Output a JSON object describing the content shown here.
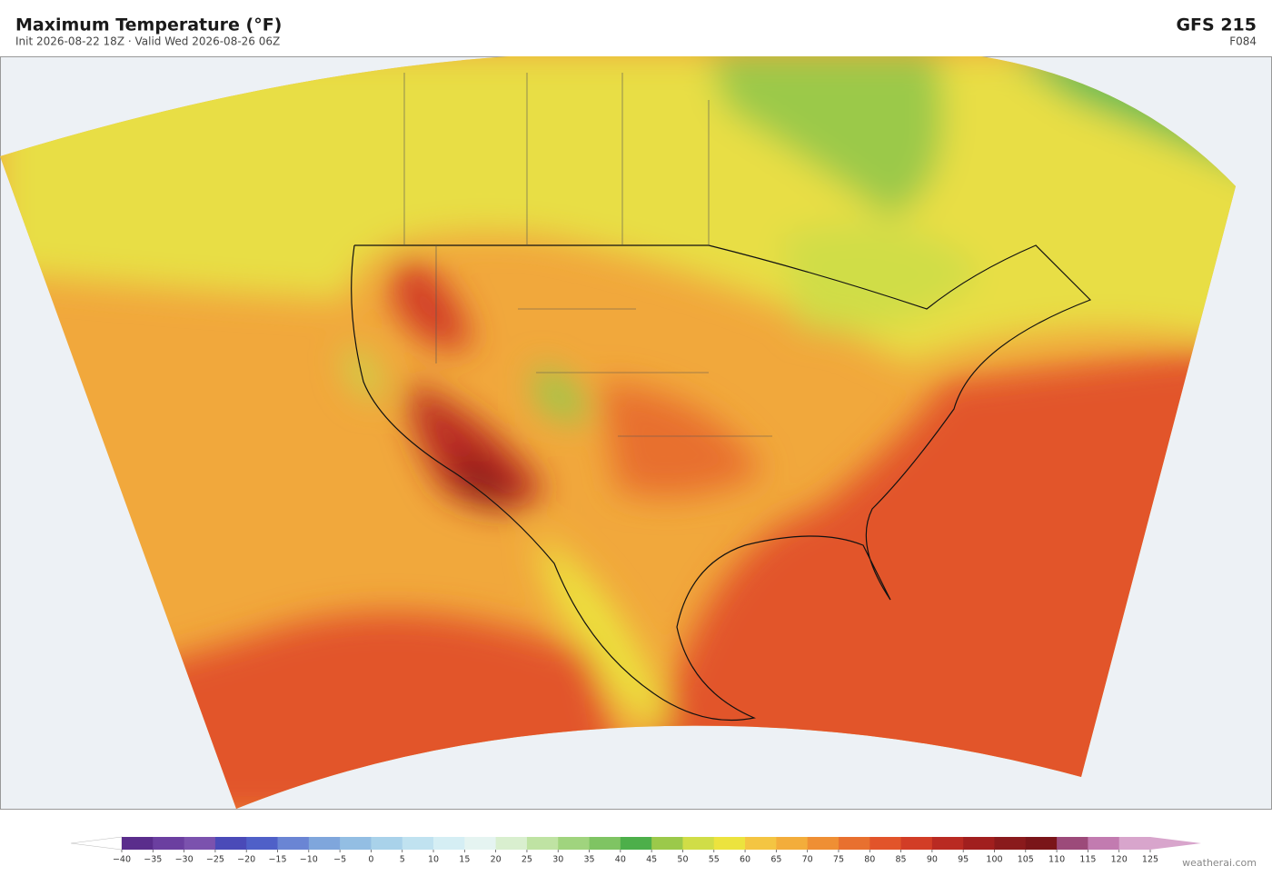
{
  "header": {
    "title": "Maximum Temperature  (°F)",
    "subtitle": "Init 2026-08-22 18Z  ·  Valid Wed 2026-08-26 06Z",
    "model": "GFS  215",
    "forecast_hour": "F084"
  },
  "colorbar": {
    "ticks": [
      {
        "value": -40,
        "label": "−40"
      },
      {
        "value": -35,
        "label": "−35"
      },
      {
        "value": -30,
        "label": "−30"
      },
      {
        "value": -25,
        "label": "−25"
      },
      {
        "value": -20,
        "label": "−20"
      },
      {
        "value": -15,
        "label": "−15"
      },
      {
        "value": -10,
        "label": "−10"
      },
      {
        "value": -5,
        "label": "−5"
      },
      0,
      5,
      10,
      15,
      20,
      25,
      30,
      35,
      40,
      45,
      50,
      55,
      60,
      65,
      70,
      75,
      80,
      85,
      90,
      95,
      100,
      105,
      110,
      115,
      120,
      125
    ],
    "colors": [
      "#5a2d8c",
      "#6b3fa0",
      "#7b52ae",
      "#4a4ab8",
      "#4f60c8",
      "#6a85d4",
      "#7fa6dc",
      "#93bee3",
      "#a9d2ea",
      "#c0e2f0",
      "#d5eef4",
      "#e5f4f1",
      "#d9efcf",
      "#bfe3a3",
      "#a0d47e",
      "#7fc463",
      "#4daf4a",
      "#9bc94a",
      "#d0dd47",
      "#ece33e",
      "#f4c542",
      "#f3ad3b",
      "#ef8f34",
      "#e8702f",
      "#e2542a",
      "#d23d26",
      "#b92a22",
      "#a11f1e",
      "#8a1a1c",
      "#7a1519",
      "#9c4a7a",
      "#c27bb0",
      "#d8a5cc"
    ],
    "under_color": "#ffffff",
    "over_color": "#d8a5cc"
  },
  "footer": {
    "credit": "weatherai.com"
  }
}
